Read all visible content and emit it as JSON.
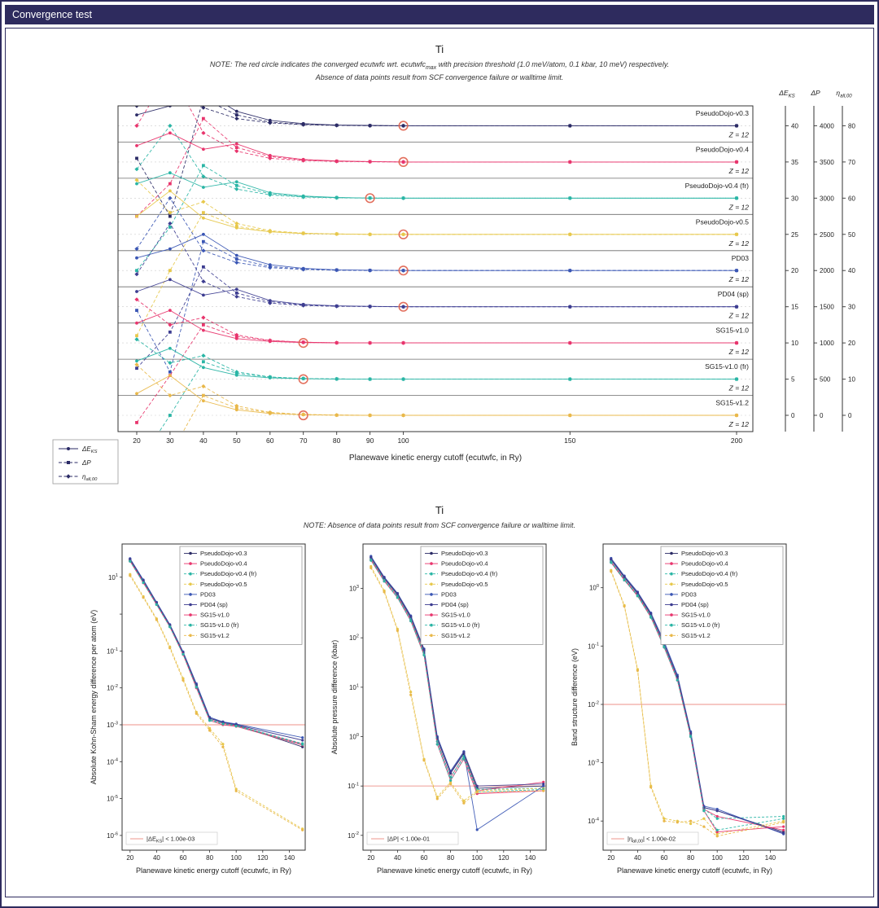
{
  "header": {
    "title": "Convergence test"
  },
  "colors": {
    "accent": "#2e2b5e",
    "threshold": "#f0a8a0",
    "converged_ring": "#e0604c"
  },
  "pseudos": [
    {
      "label": "PseudoDojo-v0.3",
      "color": "#2b2b66",
      "dashed": false
    },
    {
      "label": "PseudoDojo-v0.4",
      "color": "#e8356d",
      "dashed": false
    },
    {
      "label": "PseudoDojo-v0.4 (fr)",
      "color": "#2ab5a5",
      "dashed": true
    },
    {
      "label": "PseudoDojo-v0.5",
      "color": "#e7c84b",
      "dashed": true
    },
    {
      "label": "PD03",
      "color": "#3a56b4",
      "dashed": false
    },
    {
      "label": "PD04 (sp)",
      "color": "#3d3d91",
      "dashed": false
    },
    {
      "label": "SG15-v1.0",
      "color": "#e8356d",
      "dashed": false
    },
    {
      "label": "SG15-v1.0 (fr)",
      "color": "#2ab5a5",
      "dashed": true
    },
    {
      "label": "SG15-v1.2",
      "color": "#e9b84a",
      "dashed": true
    }
  ],
  "bottom_header": {
    "title": "Ti",
    "note": "NOTE: Absence of data points result from SCF convergence failure or walltime limit."
  },
  "chart_data": [
    {
      "type": "line",
      "id": "convergence-overview",
      "title": "Ti",
      "note1_pre": "NOTE: The red circle indicates the converged ecutwfc wrt. ecutwfc",
      "note1_sub": "max",
      "note1_post": " with precision threshold (1.0 meV/atom, 0.1 kbar, 10 meV) respectively.",
      "note2": "Absence of data points result from SCF convergence failure or walltime limit.",
      "xlabel": "Planewave kinetic energy cutoff (ecutwfc, in Ry)",
      "x_range": [
        20,
        200
      ],
      "x": [
        20,
        30,
        40,
        50,
        60,
        70,
        80,
        90,
        100,
        150,
        200
      ],
      "x_ticks": [
        20,
        30,
        40,
        50,
        60,
        70,
        80,
        90,
        100,
        150,
        200
      ],
      "z_label": "Z = 12",
      "legend": [
        {
          "pre": "ΔE",
          "sub": "KS",
          "marker": "circle",
          "dash": false
        },
        {
          "pre": "ΔP",
          "sub": "",
          "marker": "square",
          "dash": true
        },
        {
          "pre": "η",
          "sub": "all,00",
          "marker": "diamond",
          "dash": true
        }
      ],
      "right_axes": [
        {
          "pre": "ΔE",
          "sub": "KS",
          "ticks": [
            40,
            35,
            30,
            25,
            20,
            15,
            10,
            5,
            0
          ]
        },
        {
          "pre": "ΔP",
          "sub": "",
          "ticks": [
            4000,
            3500,
            3000,
            2500,
            2000,
            1500,
            1000,
            500,
            0
          ]
        },
        {
          "pre": "η",
          "sub": "all,00",
          "ticks": [
            80,
            70,
            60,
            50,
            40,
            30,
            20,
            10,
            0
          ]
        }
      ],
      "rows": [
        {
          "pseudo": 0,
          "converged": 100,
          "de": [
            0.3,
            0.55,
            0.95,
            0.4,
            0.15,
            0.06,
            0.02,
            0.01,
            0,
            0,
            0
          ],
          "dp": [
            -0.9,
            -2.5,
            0.75,
            0.3,
            0.1,
            0.04,
            0.015,
            0.005,
            0,
            0,
            0
          ],
          "eta": [
            0.55,
            1.8,
            0.5,
            0.2,
            0.08,
            0.03,
            0.01,
            0,
            0,
            0,
            0
          ]
        },
        {
          "pseudo": 1,
          "converged": 100,
          "de": [
            0.45,
            0.8,
            0.35,
            0.5,
            0.18,
            0.07,
            0.03,
            0.01,
            0,
            0,
            0
          ],
          "dp": [
            -1.5,
            -0.6,
            1.2,
            0.4,
            0.15,
            0.05,
            0.02,
            0.01,
            0,
            0,
            0
          ],
          "eta": [
            1.0,
            2.5,
            0.8,
            0.3,
            0.1,
            0.04,
            0.015,
            0.005,
            0,
            0,
            0
          ]
        },
        {
          "pseudo": 2,
          "converged": 90,
          "de": [
            0.4,
            0.7,
            0.3,
            0.45,
            0.15,
            0.06,
            0.02,
            0,
            0,
            0,
            0
          ],
          "dp": [
            -2.0,
            -0.8,
            0.9,
            0.35,
            0.12,
            0.04,
            0.015,
            0.005,
            0,
            0,
            0
          ],
          "eta": [
            0.8,
            2.0,
            0.6,
            0.25,
            0.09,
            0.03,
            0.01,
            0,
            0,
            0,
            0
          ]
        },
        {
          "pseudo": 3,
          "converged": 100,
          "de": [
            0.5,
            1.2,
            0.45,
            0.18,
            0.07,
            0.02,
            0.01,
            0,
            0,
            0,
            0
          ],
          "dp": [
            -2.8,
            -1.0,
            0.6,
            0.22,
            0.08,
            0.03,
            0.01,
            0,
            0,
            0,
            0
          ],
          "eta": [
            1.5,
            0.6,
            0.9,
            0.3,
            0.1,
            0.03,
            0.01,
            0,
            0,
            0,
            0
          ]
        },
        {
          "pseudo": 4,
          "converged": 100,
          "de": [
            0.35,
            0.6,
            1.0,
            0.42,
            0.16,
            0.06,
            0.02,
            0.01,
            0,
            0,
            0
          ],
          "dp": [
            -1.1,
            -2.8,
            0.8,
            0.32,
            0.11,
            0.04,
            0.015,
            0.005,
            0,
            0,
            0
          ],
          "eta": [
            0.6,
            2.0,
            0.55,
            0.22,
            0.08,
            0.03,
            0.01,
            0,
            0,
            0,
            0
          ]
        },
        {
          "pseudo": 5,
          "converged": 100,
          "de": [
            0.42,
            0.75,
            0.32,
            0.48,
            0.17,
            0.065,
            0.025,
            0.01,
            0,
            0,
            0
          ],
          "dp": [
            -1.7,
            -0.7,
            1.1,
            0.38,
            0.14,
            0.05,
            0.02,
            0.008,
            0,
            0,
            0
          ],
          "eta": [
            0.9,
            2.3,
            0.7,
            0.28,
            0.1,
            0.035,
            0.012,
            0.004,
            0,
            0,
            0
          ]
        },
        {
          "pseudo": 6,
          "converged": 70,
          "de": [
            0.55,
            0.9,
            0.35,
            0.12,
            0.04,
            0.01,
            0,
            0,
            0,
            0,
            0
          ],
          "dp": [
            -2.2,
            -0.9,
            0.5,
            0.18,
            0.06,
            0.02,
            0.005,
            0,
            0,
            0,
            0
          ],
          "eta": [
            1.2,
            0.5,
            0.7,
            0.22,
            0.07,
            0.02,
            0.005,
            0,
            0,
            0,
            0
          ]
        },
        {
          "pseudo": 7,
          "converged": 70,
          "de": [
            0.5,
            0.85,
            0.32,
            0.11,
            0.035,
            0.01,
            0,
            0,
            0,
            0,
            0
          ],
          "dp": [
            -2.4,
            -1.0,
            0.48,
            0.16,
            0.055,
            0.018,
            0.005,
            0,
            0,
            0,
            0
          ],
          "eta": [
            1.1,
            0.45,
            0.65,
            0.2,
            0.06,
            0.018,
            0.005,
            0,
            0,
            0,
            0
          ]
        },
        {
          "pseudo": 8,
          "converged": 70,
          "de": [
            0.6,
            1.1,
            0.4,
            0.15,
            0.05,
            0.015,
            0.005,
            0,
            0,
            0,
            0
          ],
          "dp": [
            -3.2,
            -1.1,
            0.55,
            0.2,
            0.07,
            0.02,
            0.005,
            0,
            0,
            0,
            0
          ],
          "eta": [
            1.4,
            0.55,
            0.8,
            0.26,
            0.08,
            0.025,
            0.008,
            0,
            0,
            0,
            0
          ]
        }
      ]
    },
    {
      "type": "line",
      "id": "kohn-sham-energy-difference",
      "ylabel": "Absolute Kohn-Sham energy difference per atom (eV)",
      "xlabel": "Planewave kinetic energy cutoff (ecutwfc, in Ry)",
      "threshold": 0.001,
      "annotation": {
        "pre": "|ΔE",
        "sub": "KS",
        "post": "| < 1.00e-03"
      },
      "ymin_exp": -6.4,
      "ymax_exp": 1.9,
      "ytick_exps": [
        1,
        -1,
        -2,
        -3,
        -4,
        -5,
        -6
      ],
      "x": [
        20,
        30,
        40,
        50,
        60,
        70,
        80,
        90,
        100,
        150
      ],
      "x_ticks": [
        20,
        40,
        60,
        80,
        100,
        120,
        140
      ],
      "series": [
        [
          30,
          8,
          2,
          0.5,
          0.09,
          0.012,
          0.0015,
          0.0012,
          0.001,
          0.00025
        ],
        [
          28,
          7.5,
          1.9,
          0.48,
          0.085,
          0.011,
          0.0014,
          0.0011,
          0.00095,
          0.0003
        ],
        [
          28,
          7.6,
          1.9,
          0.48,
          0.086,
          0.011,
          0.0014,
          0.0011,
          0.00096,
          0.00031
        ],
        [
          12,
          3,
          0.75,
          0.13,
          0.018,
          0.0022,
          0.0008,
          0.0003,
          1.8e-05,
          1.5e-06
        ],
        [
          32,
          8.5,
          2.1,
          0.52,
          0.095,
          0.013,
          0.0016,
          0.0012,
          0.00105,
          0.00045
        ],
        [
          31,
          8.2,
          2.0,
          0.5,
          0.09,
          0.012,
          0.0015,
          0.00115,
          0.001,
          0.00038
        ],
        [
          27,
          7,
          1.8,
          0.45,
          0.08,
          0.01,
          0.0013,
          0.001,
          0.0009,
          0.00028
        ],
        [
          27,
          7.1,
          1.8,
          0.45,
          0.081,
          0.0105,
          0.0013,
          0.00105,
          0.00092,
          0.00029
        ],
        [
          11,
          2.8,
          0.7,
          0.12,
          0.016,
          0.002,
          0.0007,
          0.00025,
          1.6e-05,
          1.4e-06
        ]
      ]
    },
    {
      "type": "line",
      "id": "pressure-difference",
      "ylabel": "Absolute pressure difference (kbar)",
      "xlabel": "Planewave kinetic energy cutoff (ecutwfc, in Ry)",
      "threshold": 0.1,
      "annotation": {
        "pre": "|ΔP",
        "sub": "",
        "post": "| < 1.00e-01"
      },
      "ymin_exp": -2.3,
      "ymax_exp": 3.9,
      "ytick_exps": [
        3,
        2,
        1,
        0,
        -1,
        -2
      ],
      "x": [
        20,
        30,
        40,
        50,
        60,
        70,
        80,
        90,
        100,
        150
      ],
      "x_ticks": [
        20,
        40,
        60,
        80,
        100,
        120,
        140
      ],
      "series": [
        [
          4200,
          1600,
          750,
          260,
          55,
          0.9,
          0.18,
          0.45,
          0.09,
          0.1
        ],
        [
          3900,
          1500,
          700,
          240,
          50,
          0.8,
          0.15,
          0.4,
          0.08,
          0.12
        ],
        [
          3900,
          1500,
          700,
          240,
          50,
          0.8,
          0.15,
          0.4,
          0.085,
          0.09
        ],
        [
          2800,
          900,
          150,
          8,
          0.35,
          0.06,
          0.12,
          0.05,
          0.08,
          0.09
        ],
        [
          4500,
          1700,
          800,
          280,
          60,
          1.0,
          0.2,
          0.5,
          0.013,
          0.1
        ],
        [
          4300,
          1650,
          780,
          270,
          58,
          0.95,
          0.19,
          0.48,
          0.1,
          0.11
        ],
        [
          3700,
          1400,
          650,
          220,
          45,
          0.7,
          0.13,
          0.35,
          0.07,
          0.08
        ],
        [
          3700,
          1400,
          650,
          220,
          45,
          0.7,
          0.13,
          0.36,
          0.075,
          0.085
        ],
        [
          2600,
          850,
          140,
          7,
          0.33,
          0.055,
          0.11,
          0.045,
          0.075,
          0.08
        ]
      ]
    },
    {
      "type": "line",
      "id": "band-structure-difference",
      "ylabel": "Band structure difference (eV)",
      "xlabel": "Planewave kinetic energy cutoff (ecutwfc, in Ry)",
      "threshold": 0.01,
      "annotation": {
        "pre": "|η",
        "sub": "all,00",
        "post": "| < 1.00e-02"
      },
      "ymin_exp": -4.5,
      "ymax_exp": 0.75,
      "ytick_exps": [
        0,
        -1,
        -2,
        -3,
        -4
      ],
      "x": [
        20,
        30,
        40,
        50,
        60,
        70,
        80,
        90,
        100,
        150
      ],
      "x_ticks": [
        20,
        40,
        60,
        80,
        100,
        120,
        140
      ],
      "series": [
        [
          3.0,
          1.5,
          0.8,
          0.35,
          0.11,
          0.03,
          0.0032,
          0.00017,
          0.00015,
          6.5e-05
        ],
        [
          2.8,
          1.4,
          0.75,
          0.33,
          0.1,
          0.028,
          0.003,
          0.00016,
          0.00012,
          7e-05
        ],
        [
          2.8,
          1.4,
          0.76,
          0.33,
          0.1,
          0.028,
          0.003,
          0.00016,
          0.00011,
          0.00012
        ],
        [
          2.0,
          0.5,
          0.04,
          0.0004,
          0.00011,
          0.0001,
          9e-05,
          0.00011,
          6e-05,
          0.0001
        ],
        [
          3.2,
          1.6,
          0.85,
          0.37,
          0.12,
          0.032,
          0.0034,
          0.00018,
          0.00016,
          6e-05
        ],
        [
          3.1,
          1.55,
          0.82,
          0.36,
          0.11,
          0.03,
          0.0032,
          0.00017,
          0.00015,
          6.2e-05
        ],
        [
          2.7,
          1.35,
          0.72,
          0.31,
          0.095,
          0.026,
          0.0028,
          0.00015,
          6.5e-05,
          8e-05
        ],
        [
          2.7,
          1.35,
          0.72,
          0.31,
          0.096,
          0.026,
          0.0028,
          0.00015,
          7e-05,
          0.00011
        ],
        [
          1.9,
          0.48,
          0.038,
          0.00038,
          0.0001,
          9.5e-05,
          0.0001,
          8e-05,
          5.5e-05,
          9.5e-05
        ]
      ]
    }
  ]
}
